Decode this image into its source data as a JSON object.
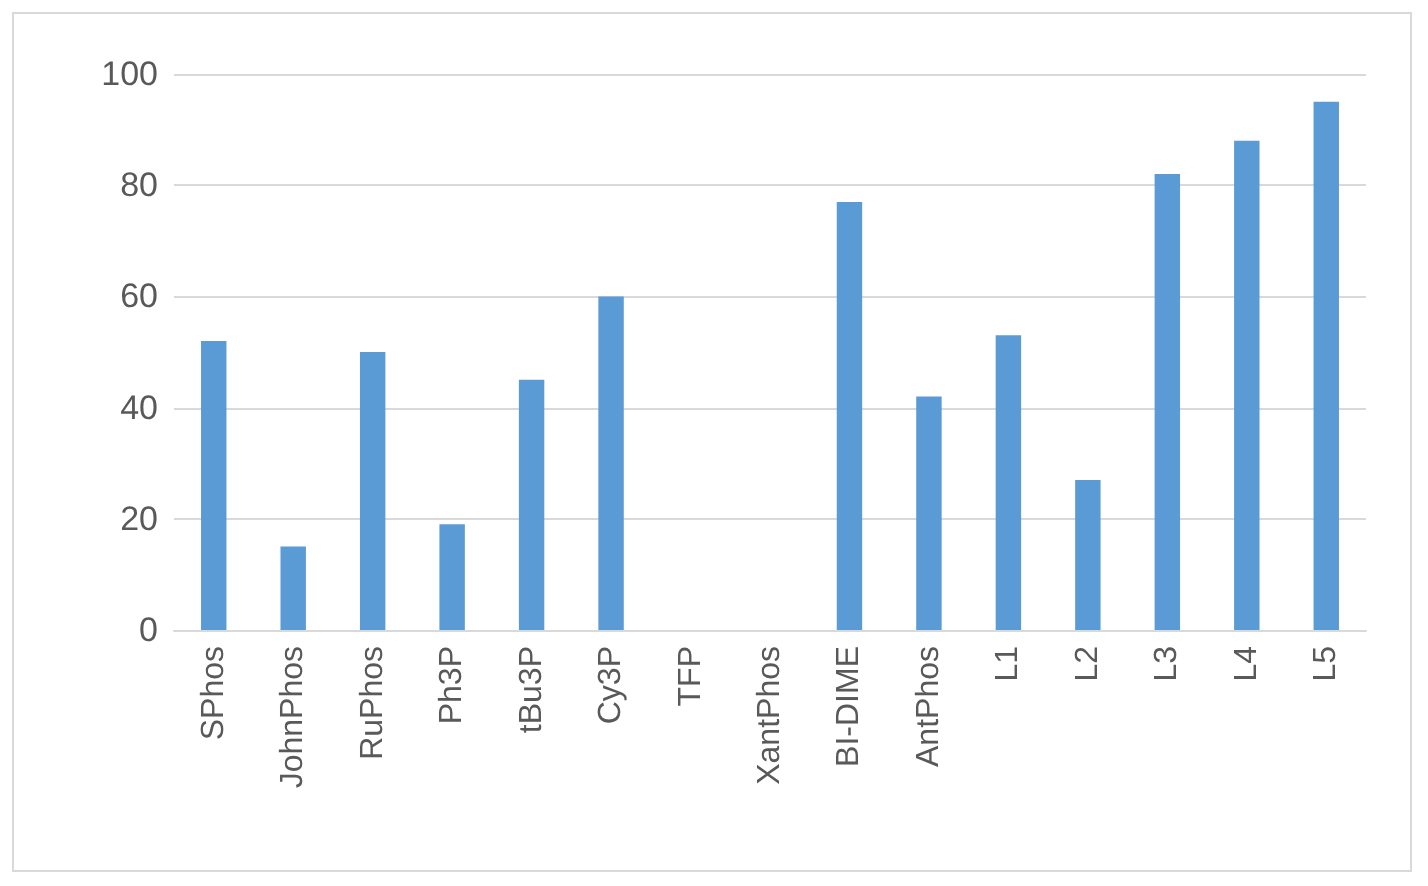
{
  "chart_data": {
    "type": "bar",
    "categories": [
      "SPhos",
      "JohnPhos",
      "RuPhos",
      "Ph3P",
      "tBu3P",
      "Cy3P",
      "TFP",
      "XantPhos",
      "BI-DIME",
      "AntPhos",
      "L1",
      "L2",
      "L3",
      "L4",
      "L5"
    ],
    "values": [
      52,
      15,
      50,
      19,
      45,
      60,
      0,
      0,
      77,
      42,
      53,
      27,
      82,
      88,
      95
    ],
    "color": "#5b9bd5",
    "ylim": [
      0,
      100
    ],
    "yticks": [
      0,
      20,
      40,
      60,
      80,
      100
    ],
    "grid": true
  }
}
